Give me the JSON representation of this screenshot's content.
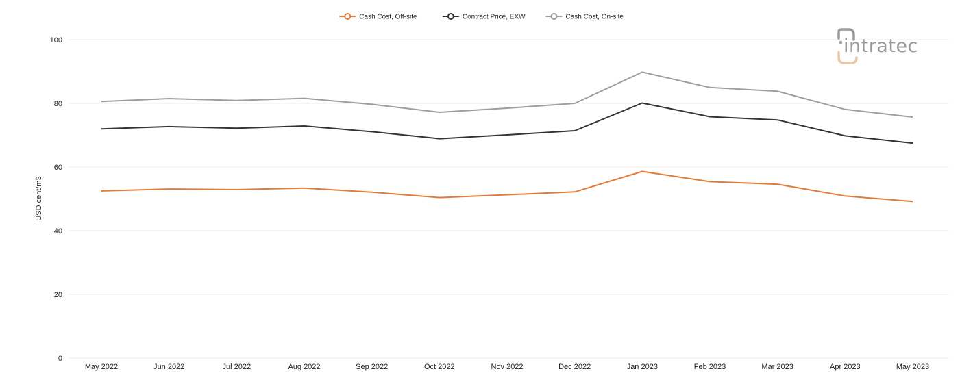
{
  "brand": {
    "name": "intratec",
    "letter_color": "#9a9a9a",
    "accent_color": "#e8c9a8"
  },
  "chart_data": {
    "type": "line",
    "categories": [
      "May 2022",
      "Jun 2022",
      "Jul 2022",
      "Aug 2022",
      "Sep 2022",
      "Oct 2022",
      "Nov 2022",
      "Dec 2022",
      "Jan 2023",
      "Feb 2023",
      "Mar 2023",
      "Apr 2023",
      "May 2023"
    ],
    "series": [
      {
        "name": "Cash Cost, Off-site",
        "color": "#e07b39",
        "values": [
          52.5,
          53.1,
          52.9,
          53.4,
          52.1,
          50.4,
          51.3,
          52.2,
          58.6,
          55.4,
          54.6,
          50.9,
          49.2
        ]
      },
      {
        "name": "Contract Price, EXW",
        "color": "#333333",
        "values": [
          72.0,
          72.7,
          72.2,
          72.9,
          71.1,
          68.9,
          70.1,
          71.4,
          80.1,
          75.8,
          74.8,
          69.8,
          67.5
        ]
      },
      {
        "name": "Cash Cost, On-site",
        "color": "#9e9e9e",
        "values": [
          80.6,
          81.5,
          80.9,
          81.6,
          79.7,
          77.2,
          78.5,
          80.0,
          89.8,
          85.0,
          83.8,
          78.1,
          75.7
        ]
      }
    ],
    "title": "",
    "xlabel": "",
    "ylabel": "USD cent/m3",
    "ylim": [
      0,
      100
    ],
    "yticks": [
      "0",
      "20",
      "40",
      "60",
      "80",
      "100"
    ],
    "ytick_values": [
      0,
      20,
      40,
      60,
      80,
      100
    ],
    "grid": true,
    "legend_position": "top-center"
  }
}
